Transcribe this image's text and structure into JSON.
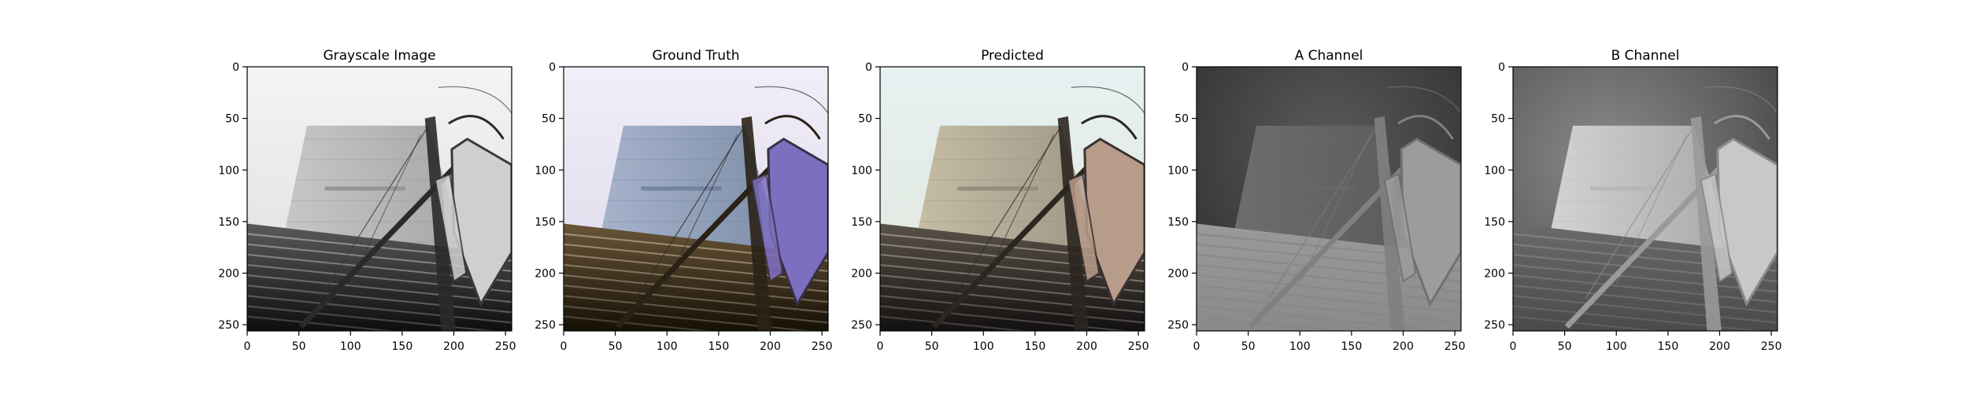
{
  "panels": [
    {
      "title": "Grayscale Image",
      "style": "gray"
    },
    {
      "title": "Ground Truth",
      "style": "color"
    },
    {
      "title": "Predicted",
      "style": "pred"
    },
    {
      "title": "A Channel",
      "style": "achannel"
    },
    {
      "title": "B Channel",
      "style": "bchannel"
    }
  ],
  "axes": {
    "x_ticks": [
      0,
      50,
      100,
      150,
      200,
      250
    ],
    "y_ticks": [
      0,
      50,
      100,
      150,
      200,
      250
    ],
    "x_range": [
      0,
      256
    ],
    "y_range": [
      0,
      256
    ],
    "grid": false
  }
}
